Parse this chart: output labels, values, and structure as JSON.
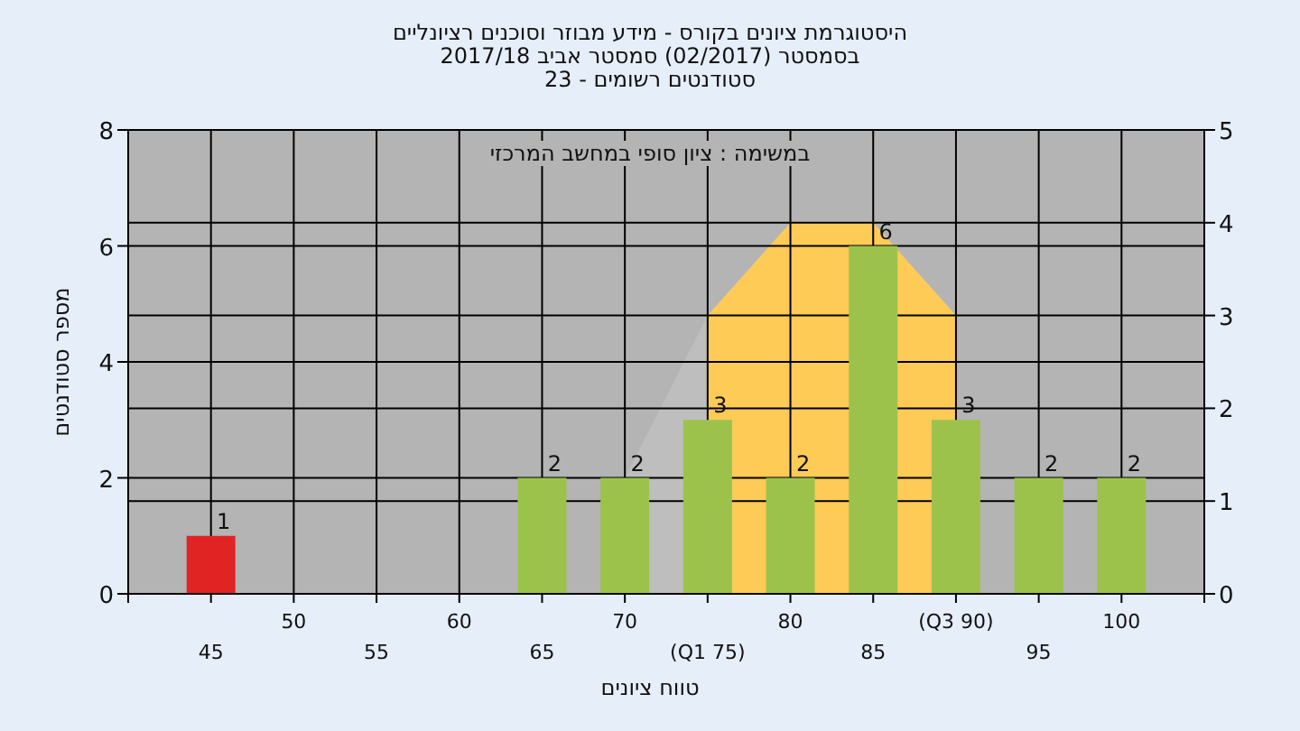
{
  "chart_data": {
    "type": "bar",
    "title": "היסטוגרמת ציונים בקורס - מידע מבוזר וסוכנים רציונליים",
    "subtitle": "בסמסטר (02/2017) סמסטר אביב 2017/18",
    "annotations": [
      "סטודנטים רשומים - 23",
      "במשימה : ציון סופי במחשב המרכזי"
    ],
    "xlabel": "טווח ציונים",
    "ylabel": "מספר סטודנטים",
    "categories": [
      "45",
      "50",
      "55",
      "60",
      "65",
      "70",
      "(Q1 75)",
      "80",
      "85",
      "(Q3 90)",
      "95",
      "100"
    ],
    "ylim": [
      0,
      8
    ],
    "yticks": [
      0,
      2,
      4,
      6,
      8
    ],
    "y2lim": [
      0,
      5
    ],
    "y2ticks": [
      0,
      1,
      2,
      3,
      4,
      5
    ],
    "grid": true,
    "series": [
      {
        "type": "area",
        "axis": "y2",
        "color": "#bebebe",
        "values": [
          null,
          null,
          null,
          null,
          null,
          1.25,
          3,
          4,
          4,
          3,
          null,
          null
        ]
      },
      {
        "type": "area",
        "axis": "y2",
        "color": "#fecb57",
        "values": [
          null,
          null,
          null,
          null,
          null,
          null,
          3,
          4,
          4,
          3,
          null,
          null
        ]
      },
      {
        "colors": [
          "#e02424",
          "#9cc24c",
          "#9cc24c",
          "#9cc24c",
          "#9cc24c",
          "#9cc24c",
          "#9cc24c",
          "#9cc24c",
          "#9cc24c",
          "#9cc24c",
          "#9cc24c",
          "#9cc24c"
        ],
        "values": [
          1,
          0,
          0,
          0,
          2,
          2,
          3,
          2,
          6,
          3,
          2,
          2
        ],
        "value_labels": [
          "1",
          null,
          null,
          null,
          "2",
          "2",
          "3",
          "2",
          "6",
          "3",
          "2",
          "2"
        ]
      }
    ]
  }
}
